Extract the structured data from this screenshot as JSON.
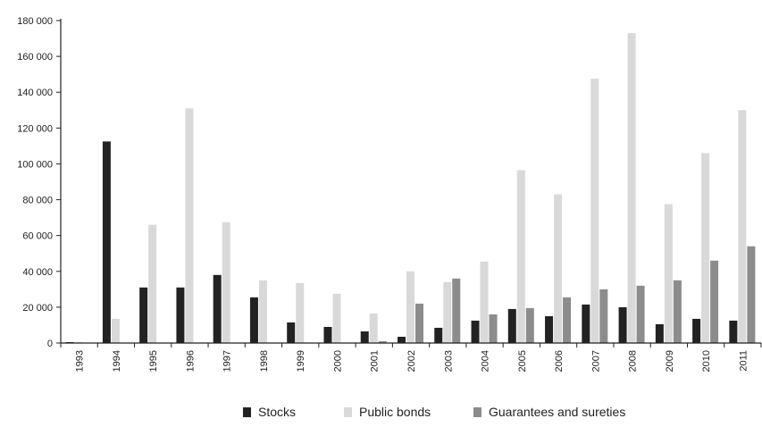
{
  "chart_data": {
    "type": "bar",
    "title": "",
    "xlabel": "",
    "ylabel": "",
    "ylim": [
      0,
      180000
    ],
    "yticks": [
      0,
      20000,
      40000,
      60000,
      80000,
      100000,
      120000,
      140000,
      160000,
      180000
    ],
    "ytick_labels": [
      "0",
      "20 000",
      "40 000",
      "60 000",
      "80 000",
      "100 000",
      "120 000",
      "140 000",
      "160 000",
      "180 000"
    ],
    "grid": false,
    "legend_position": "bottom",
    "categories": [
      "1993",
      "1994",
      "1995",
      "1996",
      "1997",
      "1998",
      "1999",
      "2000",
      "2001",
      "2002",
      "2003",
      "2004",
      "2005",
      "2006",
      "2007",
      "2008",
      "2009",
      "2010",
      "2011"
    ],
    "series": [
      {
        "name": "Stocks",
        "color": "#222222",
        "values": [
          500,
          112500,
          31000,
          31000,
          38000,
          25500,
          11500,
          9000,
          6500,
          3500,
          8500,
          12500,
          19000,
          15000,
          21500,
          20000,
          10500,
          13500,
          12500
        ]
      },
      {
        "name": "Public bonds",
        "color": "#d9d9d9",
        "values": [
          500,
          13500,
          66000,
          131000,
          67500,
          35000,
          33500,
          27500,
          16500,
          40000,
          34000,
          45500,
          96500,
          83000,
          147500,
          173000,
          77500,
          106000,
          130000
        ]
      },
      {
        "name": "Guarantees and sureties",
        "color": "#8c8c8c",
        "values": [
          0,
          0,
          0,
          0,
          0,
          0,
          0,
          0,
          1000,
          22000,
          36000,
          16000,
          19500,
          25500,
          30000,
          32000,
          35000,
          46000,
          54000
        ]
      }
    ]
  }
}
